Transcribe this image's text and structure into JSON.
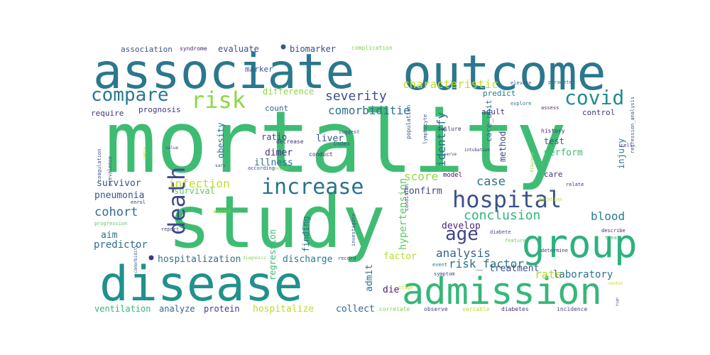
{
  "wordcloud": {
    "words": [
      {
        "text": "mortality",
        "color": "#3fbc73"
      },
      {
        "text": "study",
        "color": "#3fbc73"
      },
      {
        "text": "associate",
        "color": "#2a788e"
      },
      {
        "text": "outcome",
        "color": "#2a788e"
      },
      {
        "text": "disease",
        "color": "#21918c"
      },
      {
        "text": "admission",
        "color": "#35b779"
      },
      {
        "text": "group",
        "color": "#2db27d"
      },
      {
        "text": "hospital",
        "color": "#3b528b"
      },
      {
        "text": "increase",
        "color": "#2c728e"
      },
      {
        "text": "compare",
        "color": "#2a788e"
      },
      {
        "text": "risk",
        "color": "#8fd744"
      },
      {
        "text": "covid",
        "color": "#228c8d"
      },
      {
        "text": "death",
        "color": "#3e4989"
      },
      {
        "text": "age",
        "color": "#414487"
      },
      {
        "text": "severity",
        "color": "#3b528b"
      },
      {
        "text": "characteristic",
        "color": "#c2df23"
      },
      {
        "text": "comorbiditie",
        "color": "#2c728e"
      },
      {
        "text": "identify",
        "color": "#31688e"
      },
      {
        "text": "infection",
        "color": "#bddf26"
      },
      {
        "text": "conclusion",
        "color": "#31b57b"
      },
      {
        "text": "analysis",
        "color": "#33638d"
      },
      {
        "text": "risk_factor",
        "color": "#2c728e"
      },
      {
        "text": "cohort",
        "color": "#2e6f8e"
      },
      {
        "text": "blood",
        "color": "#277f8e"
      },
      {
        "text": "case",
        "color": "#2d718e"
      },
      {
        "text": "score",
        "color": "#90d743"
      },
      {
        "text": "rate",
        "color": "#addc30"
      },
      {
        "text": "laboratory",
        "color": "#2c728e"
      },
      {
        "text": "pneumonia",
        "color": "#3b528b"
      },
      {
        "text": "survivor",
        "color": "#3b528b"
      },
      {
        "text": "aim",
        "color": "#2e6e8e"
      },
      {
        "text": "predictor",
        "color": "#2e6e8e"
      },
      {
        "text": "hospitalization",
        "color": "#2c728e"
      },
      {
        "text": "discharge",
        "color": "#287c8e"
      },
      {
        "text": "factor",
        "color": "#b5de2b"
      },
      {
        "text": "treatment",
        "color": "#3b528b"
      },
      {
        "text": "develop",
        "color": "#482878"
      },
      {
        "text": "confirm",
        "color": "#3e4a89"
      },
      {
        "text": "hypertension",
        "color": "#5ec962"
      },
      {
        "text": "admit",
        "color": "#2d708e"
      },
      {
        "text": "die",
        "color": "#481f70"
      },
      {
        "text": "regression",
        "color": "#3aba76"
      },
      {
        "text": "finding",
        "color": "#2d708e"
      },
      {
        "text": "collect",
        "color": "#30698e"
      },
      {
        "text": "hospitalize",
        "color": "#b8de29"
      },
      {
        "text": "protein",
        "color": "#433d84"
      },
      {
        "text": "analyze",
        "color": "#31688e"
      },
      {
        "text": "ventilation",
        "color": "#35b779"
      },
      {
        "text": "survival",
        "color": "#5cc863"
      },
      {
        "text": "illness",
        "color": "#2c728e"
      },
      {
        "text": "dimer",
        "color": "#46327e"
      },
      {
        "text": "liver",
        "color": "#3b528b"
      },
      {
        "text": "ratio",
        "color": "#3f4788"
      },
      {
        "text": "obesity",
        "color": "#2e6f8e"
      },
      {
        "text": "count",
        "color": "#33638d"
      },
      {
        "text": "difference",
        "color": "#8fd744"
      },
      {
        "text": "prognosis",
        "color": "#453781"
      },
      {
        "text": "require",
        "color": "#46327e"
      },
      {
        "text": "marker",
        "color": "#3b528b"
      },
      {
        "text": "biomarker",
        "color": "#3e4989"
      },
      {
        "text": "evaluate",
        "color": "#3b528b"
      },
      {
        "text": "association",
        "color": "#3b528b"
      },
      {
        "text": "syndrome",
        "color": "#481f70"
      },
      {
        "text": "complication",
        "color": "#7ad151"
      },
      {
        "text": "predict",
        "color": "#2a788e"
      },
      {
        "text": "adult",
        "color": "#46327e"
      },
      {
        "text": "test",
        "color": "#3b528b"
      },
      {
        "text": "method",
        "color": "#404688"
      },
      {
        "text": "perform",
        "color": "#3fbc73"
      },
      {
        "text": "care_unit",
        "color": "#30698e"
      },
      {
        "text": "control",
        "color": "#46327e"
      },
      {
        "text": "injury",
        "color": "#2a788e"
      },
      {
        "text": "care",
        "color": "#46327e"
      },
      {
        "text": "history",
        "color": "#482878"
      },
      {
        "text": "failure",
        "color": "#472d7b"
      },
      {
        "text": "suggest",
        "color": "#3e4a89"
      },
      {
        "text": "population",
        "color": "#3b528b"
      },
      {
        "text": "lymphocyte",
        "color": "#3b528b"
      },
      {
        "text": "index",
        "color": "#3e4989"
      },
      {
        "text": "conduct",
        "color": "#482878"
      },
      {
        "text": "model",
        "color": "#46085c"
      },
      {
        "text": "condition",
        "color": "#3e4989"
      },
      {
        "text": "investigate",
        "color": "#3b528b"
      },
      {
        "text": "diabete",
        "color": "#3e4989"
      },
      {
        "text": "feature",
        "color": "#6ece58"
      },
      {
        "text": "determine",
        "color": "#453781"
      },
      {
        "text": "describe",
        "color": "#481f70"
      },
      {
        "text": "treat",
        "color": "#35b779"
      },
      {
        "text": "relate",
        "color": "#472d7b"
      },
      {
        "text": "duration",
        "color": "#b5de2b"
      },
      {
        "text": "intubation",
        "color": "#482878"
      },
      {
        "text": "explore",
        "color": "#2a788e"
      },
      {
        "text": "assess",
        "color": "#481f70"
      },
      {
        "text": "parameter",
        "color": "#2a788e"
      },
      {
        "text": "elevate",
        "color": "#3b528b"
      },
      {
        "text": "regression_analysis",
        "color": "#3b528b"
      },
      {
        "text": "cell",
        "color": "#46327e"
      },
      {
        "text": "coagulation",
        "color": "#3b528b"
      },
      {
        "text": "prevalence",
        "color": "#3b528b"
      },
      {
        "text": "enrol",
        "color": "#46327e"
      },
      {
        "text": "progression",
        "color": "#5ec962"
      },
      {
        "text": "adjust",
        "color": "#8fd744"
      },
      {
        "text": "report",
        "color": "#3e4989"
      },
      {
        "text": "diagnosis",
        "color": "#7ad151"
      },
      {
        "text": "record",
        "color": "#3e4989"
      },
      {
        "text": "stage",
        "color": "#bddf26"
      },
      {
        "text": "event",
        "color": "#2c728e"
      },
      {
        "text": "symptom",
        "color": "#3e4989"
      },
      {
        "text": "correlate",
        "color": "#7ad151"
      },
      {
        "text": "observe",
        "color": "#3e4989"
      },
      {
        "text": "variable",
        "color": "#b5de2b"
      },
      {
        "text": "diabetes",
        "color": "#46327e"
      },
      {
        "text": "incidence",
        "color": "#3e4989"
      },
      {
        "text": "center",
        "color": "#b5de2b"
      },
      {
        "text": "comorbidity",
        "color": "#3b528b"
      },
      {
        "text": "decrease",
        "color": "#46327e"
      },
      {
        "text": "according",
        "color": "#3e4989"
      },
      {
        "text": "oxygen",
        "color": "#7ad151"
      },
      {
        "text": "sars",
        "color": "#3e4989"
      },
      {
        "text": "value",
        "color": "#3e4989"
      },
      {
        "text": "serve",
        "color": "#3e4989"
      },
      {
        "text": "diagnose",
        "color": "#8fd744"
      },
      {
        "text": "high",
        "color": "#3b528b"
      },
      {
        "text": "sample",
        "color": "#c2df23"
      }
    ]
  }
}
